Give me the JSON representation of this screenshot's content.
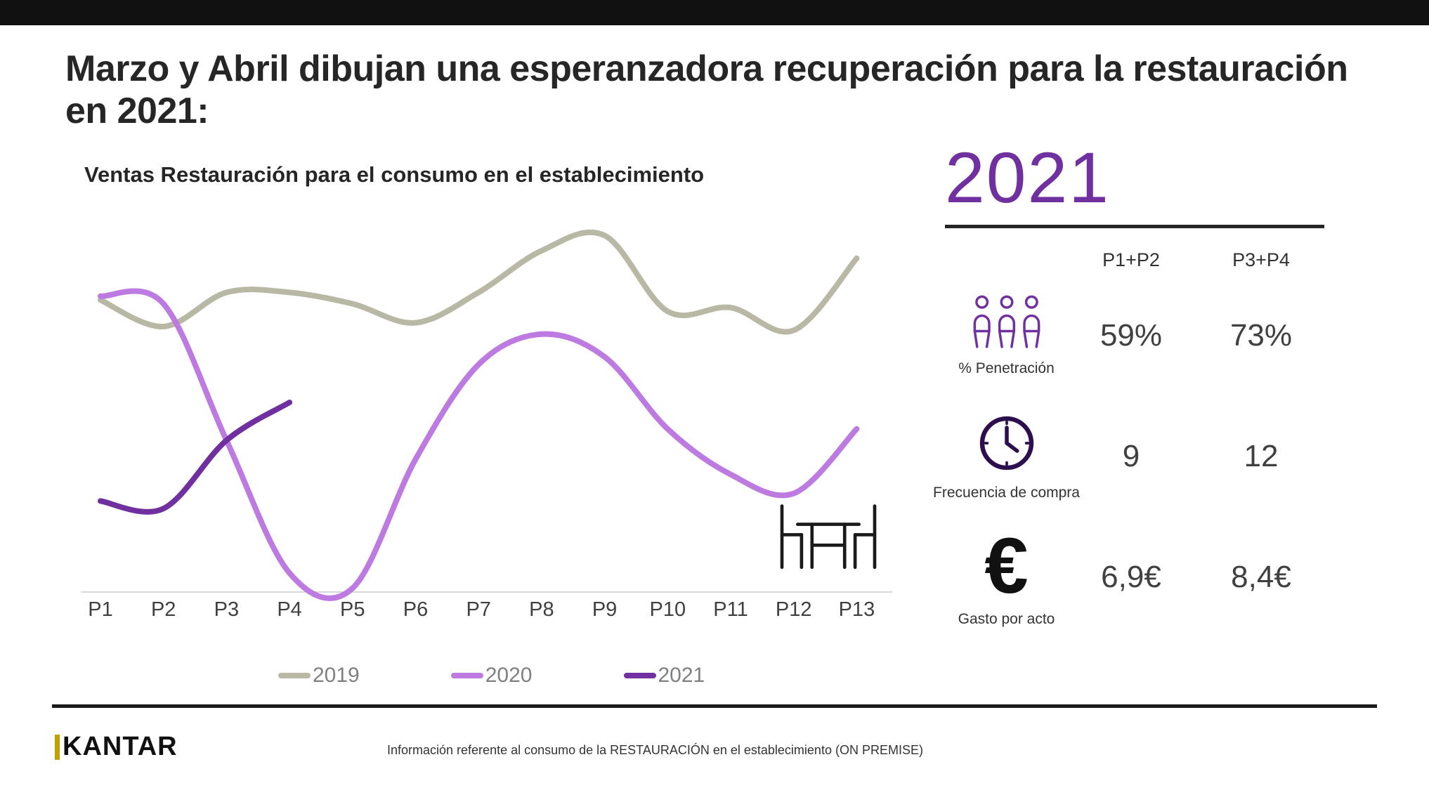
{
  "slide": {
    "title": "Marzo y Abril dibujan una esperanzadora recuperación para la restauración en 2021:",
    "top_bar_color": "#111111",
    "footer": {
      "brand": "KANTAR",
      "brand_bar_color": "#bfa200",
      "note": "Información referente al consumo de la RESTAURACIÓN en el establecimiento (ON PREMISE)"
    }
  },
  "chart_data": {
    "type": "line",
    "title": "Ventas Restauración para el consumo en el establecimiento",
    "categories": [
      "P1",
      "P2",
      "P3",
      "P4",
      "P5",
      "P6",
      "P7",
      "P8",
      "P9",
      "P10",
      "P11",
      "P12",
      "P13"
    ],
    "series": [
      {
        "name": "2019",
        "color": "#b9b8a5",
        "values": [
          77,
          70,
          79,
          79,
          76,
          71,
          79,
          90,
          94,
          74,
          75,
          69,
          88
        ]
      },
      {
        "name": "2020",
        "color": "#bd7ae0",
        "values": [
          78,
          76,
          40,
          5,
          1,
          35,
          60,
          68,
          62,
          43,
          31,
          26,
          43
        ]
      },
      {
        "name": "2021",
        "color": "#7030a0",
        "values": [
          24,
          22,
          40,
          50,
          null,
          null,
          null,
          null,
          null,
          null,
          null,
          null,
          null
        ]
      }
    ],
    "xlabel": "",
    "ylabel": "",
    "ylim": [
      0,
      100
    ],
    "grid": false,
    "legend_position": "bottom",
    "notes": "y-axis unlabeled in source; values are relative estimates on 0-100 scale",
    "baseline_color": "#d9d9d9",
    "decoration": "table-chairs-icon"
  },
  "panel": {
    "year": "2021",
    "accent_color": "#7030a0",
    "columns": [
      "P1+P2",
      "P3+P4"
    ],
    "rows": [
      {
        "icon": "people-icon",
        "label": "% Penetración",
        "values": [
          "59%",
          "73%"
        ]
      },
      {
        "icon": "clock-icon",
        "label": "Frecuencia de compra",
        "values": [
          "9",
          "12"
        ]
      },
      {
        "icon": "euro-icon",
        "label": "Gasto por acto",
        "values": [
          "6,9€",
          "8,4€"
        ]
      }
    ]
  }
}
